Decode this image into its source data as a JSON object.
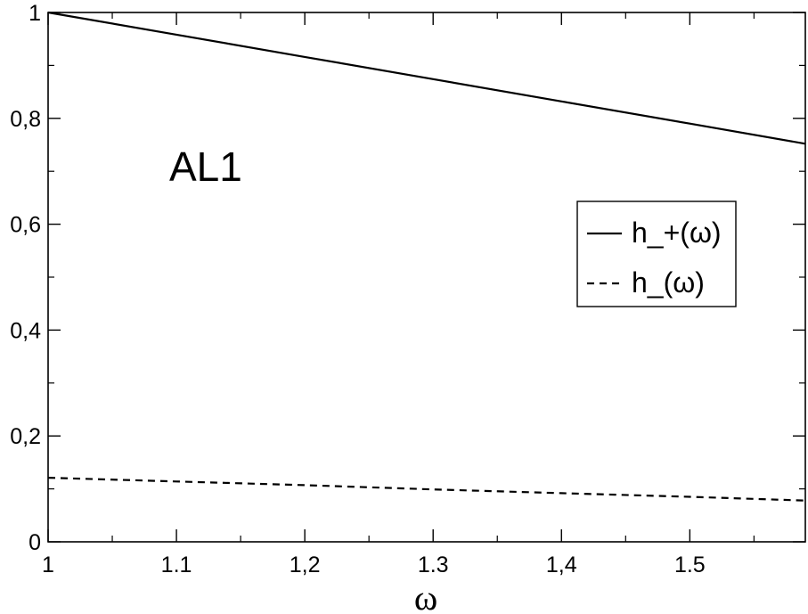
{
  "chart_data": {
    "type": "line",
    "xlabel": "ω",
    "ylabel": "",
    "xlim": [
      1.0,
      1.59
    ],
    "ylim": [
      0.0,
      1.0
    ],
    "x_ticks": [
      1.0,
      1.1,
      1.2,
      1.3,
      1.4,
      1.5
    ],
    "x_tick_labels": [
      "1",
      "1.1",
      "1,2",
      "1.3",
      "1,4",
      "1.5"
    ],
    "y_ticks": [
      0.0,
      0.2,
      0.4,
      0.6,
      0.8,
      1.0
    ],
    "y_tick_labels": [
      "0",
      "0,2",
      "0,4",
      "0,6",
      "0,8",
      "1"
    ],
    "annotation": "AL1",
    "legend_position": "right",
    "series": [
      {
        "name": "h_+(ω)",
        "style": "solid",
        "x": [
          1.0,
          1.1,
          1.2,
          1.3,
          1.4,
          1.5,
          1.59
        ],
        "y": [
          1.0,
          0.958,
          0.916,
          0.874,
          0.832,
          0.79,
          0.752
        ]
      },
      {
        "name": "h_(ω)",
        "style": "dashed",
        "x": [
          1.0,
          1.1,
          1.2,
          1.3,
          1.4,
          1.5,
          1.59
        ],
        "y": [
          0.121,
          0.114,
          0.107,
          0.099,
          0.092,
          0.085,
          0.078
        ]
      }
    ]
  }
}
